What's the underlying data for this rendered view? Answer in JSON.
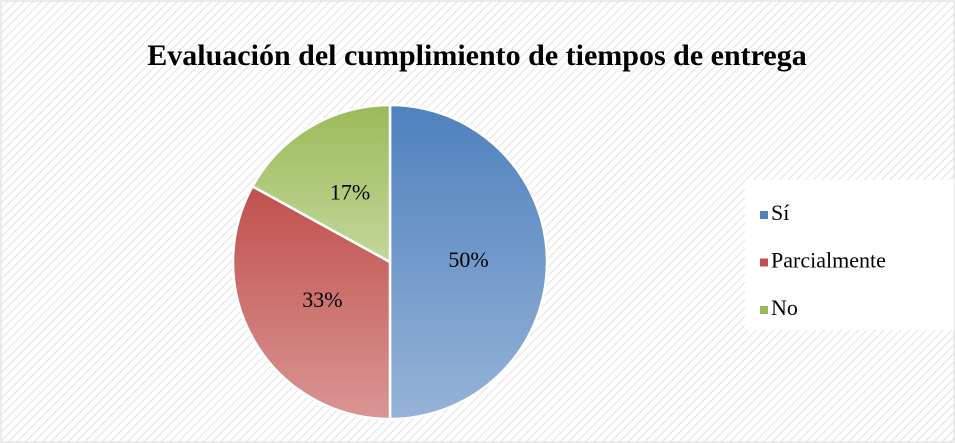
{
  "chart_data": {
    "type": "pie",
    "title": "Evaluación del cumplimiento de tiempos de entrega",
    "categories": [
      "Sí",
      "Parcialmente",
      "No"
    ],
    "values": [
      50,
      33,
      17
    ],
    "value_labels": [
      "50%",
      "33%",
      "17%"
    ],
    "colors": [
      "#4f81bd",
      "#c0504d",
      "#9bbb59"
    ],
    "legend": "right"
  }
}
